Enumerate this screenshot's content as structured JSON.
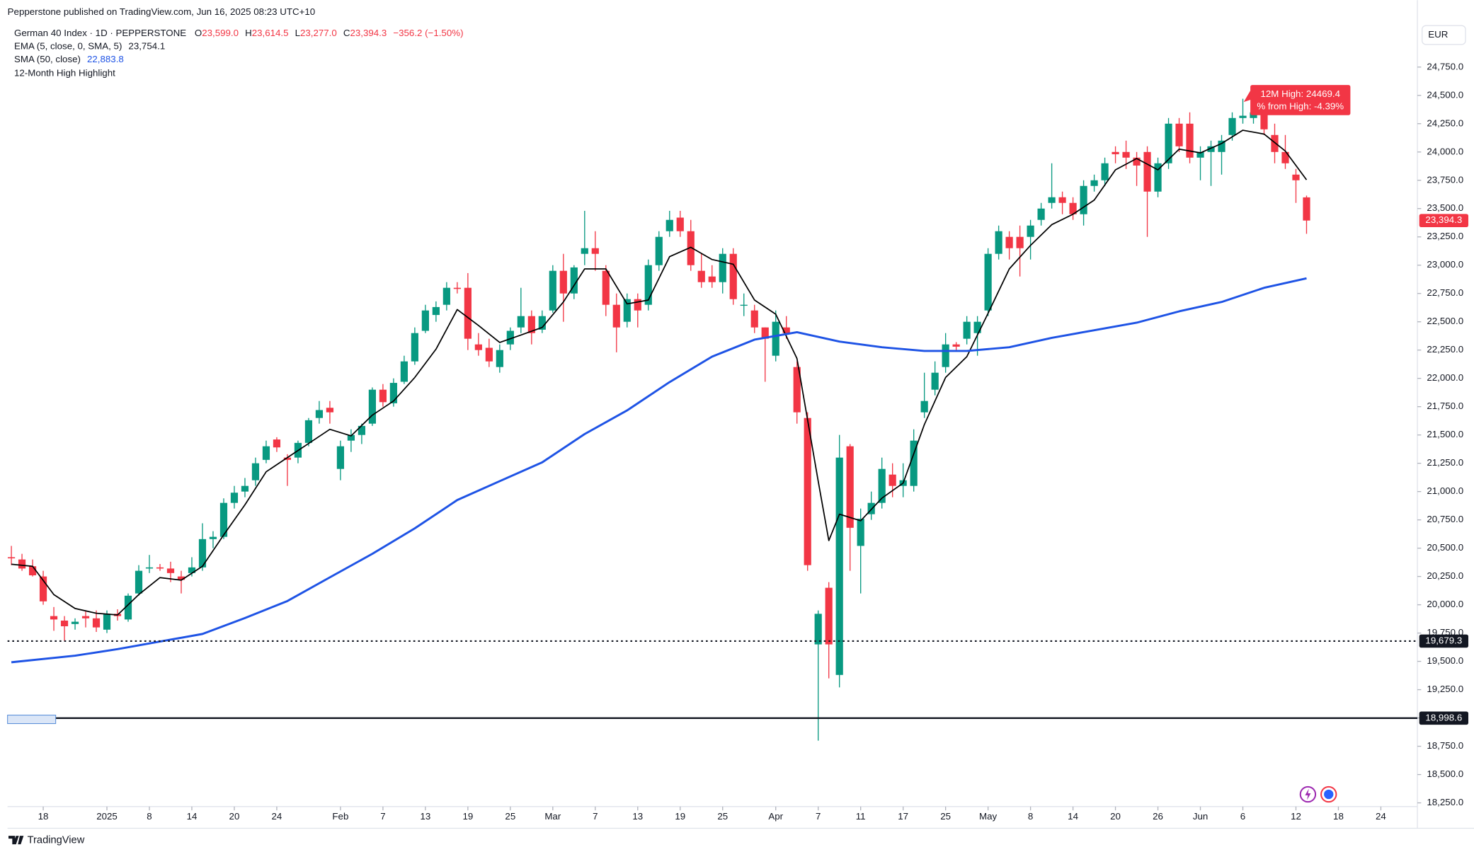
{
  "header": {
    "published": "Pepperstone published on TradingView.com, Jun 16, 2025 08:23 UTC+10",
    "symbol": "German 40 Index · 1D · PEPPERSTONE",
    "ohlc_legend": [
      {
        "label": "O",
        "value": "23,599.0"
      },
      {
        "label": "H",
        "value": "23,614.5"
      },
      {
        "label": "L",
        "value": "23,277.0"
      },
      {
        "label": "C",
        "value": "23,394.3"
      }
    ],
    "change": "−356.2 (−1.50%)",
    "indicators": [
      {
        "name": "EMA (5, close, 0, SMA, 5)",
        "value": "23,754.1"
      },
      {
        "name": "SMA (50, close)",
        "value": "22,883.8"
      },
      {
        "name": "12-Month High Highlight"
      }
    ],
    "currency": "EUR"
  },
  "footer": {
    "brand": "TradingView"
  },
  "chart_data": {
    "type": "candlestick",
    "up_color": "#089981",
    "down_color": "#f23645",
    "grid": false,
    "xlim": [
      -0.36,
      132.44
    ],
    "ylim": [
      18217,
      25133
    ],
    "yticks": [
      {
        "value": 24750,
        "label": "24,750.0"
      },
      {
        "value": 24500,
        "label": "24,500.0"
      },
      {
        "value": 24250,
        "label": "24,250.0"
      },
      {
        "value": 24000,
        "label": "24,000.0"
      },
      {
        "value": 23750,
        "label": "23,750.0"
      },
      {
        "value": 23500,
        "label": "23,500.0"
      },
      {
        "value": 23250,
        "label": "23,250.0"
      },
      {
        "value": 23000,
        "label": "23,000.0"
      },
      {
        "value": 22750,
        "label": "22,750.0"
      },
      {
        "value": 22500,
        "label": "22,500.0"
      },
      {
        "value": 22250,
        "label": "22,250.0"
      },
      {
        "value": 22000,
        "label": "22,000.0"
      },
      {
        "value": 21750,
        "label": "21,750.0"
      },
      {
        "value": 21500,
        "label": "21,500.0"
      },
      {
        "value": 21250,
        "label": "21,250.0"
      },
      {
        "value": 21000,
        "label": "21,000.0"
      },
      {
        "value": 20750,
        "label": "20,750.0"
      },
      {
        "value": 20500,
        "label": "20,500.0"
      },
      {
        "value": 20250,
        "label": "20,250.0"
      },
      {
        "value": 20000,
        "label": "20,000.0"
      },
      {
        "value": 19750,
        "label": "19,750.0"
      },
      {
        "value": 19500,
        "label": "19,500.0"
      },
      {
        "value": 19250,
        "label": "19,250.0"
      },
      {
        "value": 19000,
        "label": "19,000.0"
      },
      {
        "value": 18750,
        "label": "18,750.0"
      },
      {
        "value": 18500,
        "label": "18,500.0"
      },
      {
        "value": 18250,
        "label": "18,250.0"
      }
    ],
    "xticks": [
      {
        "value": 3,
        "label": "18"
      },
      {
        "value": 9,
        "label": "2025"
      },
      {
        "value": 13,
        "label": "8"
      },
      {
        "value": 17,
        "label": "14"
      },
      {
        "value": 21,
        "label": "20"
      },
      {
        "value": 25,
        "label": "24"
      },
      {
        "value": 31,
        "label": "Feb"
      },
      {
        "value": 35,
        "label": "7"
      },
      {
        "value": 39,
        "label": "13"
      },
      {
        "value": 43,
        "label": "19"
      },
      {
        "value": 47,
        "label": "25"
      },
      {
        "value": 51,
        "label": "Mar"
      },
      {
        "value": 55,
        "label": "7"
      },
      {
        "value": 59,
        "label": "13"
      },
      {
        "value": 63,
        "label": "19"
      },
      {
        "value": 67,
        "label": "25"
      },
      {
        "value": 72,
        "label": "Apr"
      },
      {
        "value": 76,
        "label": "7"
      },
      {
        "value": 80,
        "label": "11"
      },
      {
        "value": 84,
        "label": "17"
      },
      {
        "value": 88,
        "label": "25"
      },
      {
        "value": 92,
        "label": "May"
      },
      {
        "value": 96,
        "label": "8"
      },
      {
        "value": 100,
        "label": "14"
      },
      {
        "value": 104,
        "label": "20"
      },
      {
        "value": 108,
        "label": "26"
      },
      {
        "value": 112,
        "label": "Jun"
      },
      {
        "value": 116,
        "label": "6"
      },
      {
        "value": 121,
        "label": "12"
      },
      {
        "value": 125,
        "label": "18"
      },
      {
        "value": 129,
        "label": "24"
      }
    ],
    "open": [
      20420,
      20400,
      20340,
      20250,
      19900,
      19860,
      19830,
      19900,
      19880,
      19780,
      19920,
      19870,
      20100,
      20320,
      20330,
      20320,
      20250,
      20280,
      20330,
      20580,
      20600,
      20900,
      21000,
      21100,
      21280,
      21460,
      21300,
      21300,
      21430,
      21650,
      21740,
      21200,
      21450,
      21500,
      21600,
      21900,
      21780,
      21970,
      22150,
      22420,
      22560,
      22650,
      22800,
      22800,
      22300,
      22270,
      22100,
      22300,
      22450,
      22550,
      22430,
      22600,
      22950,
      22750,
      23100,
      23150,
      22950,
      22650,
      22500,
      22700,
      22650,
      23000,
      23300,
      23420,
      23300,
      22950,
      22900,
      22850,
      23100,
      22650,
      22600,
      22450,
      22200,
      22450,
      22100,
      21650,
      19650,
      20150,
      19380,
      21400,
      20520,
      20800,
      20900,
      21150,
      21050,
      21050,
      21700,
      21900,
      22100,
      22300,
      22350,
      22400,
      22600,
      23100,
      23250,
      23250,
      23250,
      23400,
      23550,
      23600,
      23550,
      23450,
      23700,
      23750,
      24000,
      24000,
      23950,
      24000,
      23650,
      23900,
      24250,
      24250,
      23950,
      24000,
      24000,
      24150,
      24300,
      24300,
      24350,
      24150,
      24000,
      23800,
      23599
    ],
    "high": [
      20520,
      20450,
      20400,
      20300,
      19980,
      19900,
      19880,
      19950,
      19950,
      19950,
      19960,
      20100,
      20350,
      20440,
      20360,
      20380,
      20300,
      20420,
      20720,
      20650,
      20940,
      21050,
      21120,
      21300,
      21450,
      21480,
      21330,
      21450,
      21650,
      21800,
      21800,
      21450,
      21550,
      21600,
      21920,
      21950,
      22000,
      22200,
      22450,
      22650,
      22680,
      22850,
      22850,
      22930,
      22400,
      22350,
      22300,
      22450,
      22800,
      22600,
      22600,
      23000,
      23100,
      23000,
      23480,
      23300,
      23000,
      22750,
      22750,
      22750,
      23050,
      23300,
      23480,
      23480,
      23400,
      23100,
      23000,
      23150,
      23150,
      22750,
      22650,
      22450,
      22600,
      22550,
      22150,
      21700,
      19950,
      20200,
      21500,
      21420,
      20850,
      21000,
      21300,
      21250,
      21250,
      21550,
      22050,
      22150,
      22400,
      22320,
      22550,
      22550,
      23150,
      23350,
      23300,
      23350,
      23400,
      23550,
      23900,
      23650,
      23600,
      23750,
      23800,
      23950,
      24050,
      24100,
      24000,
      24050,
      23950,
      24300,
      24300,
      24350,
      24050,
      24100,
      24150,
      24350,
      24470,
      24420,
      24400,
      24250,
      24150,
      23850,
      23614.5
    ],
    "low": [
      20350,
      20300,
      20250,
      20000,
      19770,
      19680,
      19780,
      19800,
      19760,
      19750,
      19860,
      19850,
      20080,
      20280,
      20300,
      20200,
      20100,
      20250,
      20300,
      20500,
      20580,
      20850,
      20950,
      21050,
      21250,
      21350,
      21050,
      21250,
      21400,
      21600,
      21600,
      21100,
      21350,
      21420,
      21580,
      21750,
      21750,
      21950,
      22120,
      22400,
      22500,
      22600,
      22750,
      22250,
      22200,
      22100,
      22050,
      22250,
      22400,
      22300,
      22400,
      22580,
      22500,
      22700,
      23000,
      22950,
      22550,
      22230,
      22450,
      22450,
      22600,
      22950,
      23250,
      23250,
      22950,
      22800,
      22800,
      22750,
      22650,
      22550,
      22400,
      21970,
      22150,
      22350,
      21600,
      20300,
      18800,
      19350,
      19270,
      20300,
      20100,
      20750,
      20850,
      20950,
      20950,
      21000,
      21650,
      21850,
      22050,
      22250,
      22300,
      22200,
      22550,
      23050,
      23050,
      22900,
      23050,
      23350,
      23500,
      23450,
      23400,
      23350,
      23650,
      23700,
      23900,
      23850,
      23700,
      23250,
      23600,
      23850,
      24000,
      23900,
      23750,
      23700,
      23800,
      24100,
      24250,
      24250,
      24150,
      23900,
      23850,
      23550,
      23277
    ],
    "close": [
      20410,
      20320,
      20260,
      20030,
      19870,
      19810,
      19850,
      19880,
      19800,
      19920,
      19900,
      20080,
      20300,
      20330,
      20320,
      20280,
      20220,
      20330,
      20580,
      20600,
      20900,
      20990,
      21050,
      21250,
      21400,
      21390,
      21280,
      21430,
      21630,
      21720,
      21700,
      21400,
      21500,
      21580,
      21900,
      21790,
      21960,
      22150,
      22400,
      22600,
      22630,
      22800,
      22790,
      22350,
      22250,
      22150,
      22250,
      22420,
      22550,
      22400,
      22550,
      22950,
      22750,
      22980,
      23150,
      23100,
      22650,
      22450,
      22700,
      22600,
      23000,
      23250,
      23400,
      23300,
      23000,
      22850,
      22850,
      23100,
      22700,
      22650,
      22450,
      22350,
      22500,
      22400,
      21700,
      20350,
      19920,
      19650,
      21300,
      20680,
      20760,
      20900,
      21200,
      21050,
      21100,
      21450,
      21800,
      22050,
      22300,
      22280,
      22500,
      22500,
      23100,
      23300,
      23150,
      23150,
      23350,
      23500,
      23600,
      23550,
      23450,
      23700,
      23750,
      23900,
      23980,
      23950,
      23880,
      23650,
      23900,
      24250,
      24050,
      23950,
      24000,
      24050,
      24100,
      24300,
      24320,
      24350,
      24200,
      24000,
      23900,
      23750,
      23394.3
    ],
    "last_price_label": "23,394.3",
    "lines": [
      {
        "color": "#000000",
        "x": [
          0,
          2,
          4,
          6,
          8,
          10,
          12,
          14,
          16,
          18,
          20,
          22,
          24,
          26,
          28,
          30,
          32,
          34,
          36,
          38,
          40,
          42,
          44,
          46,
          48,
          50,
          52,
          54,
          56,
          58,
          60,
          62,
          64,
          66,
          68,
          70,
          72,
          74,
          76,
          77,
          78,
          80,
          82,
          84,
          86,
          88,
          90,
          92,
          94,
          96,
          98,
          100,
          102,
          104,
          106,
          108,
          110,
          112,
          114,
          116,
          118,
          120,
          122
        ],
        "values": [
          20358,
          20340,
          20090,
          19967,
          19925,
          19910,
          20090,
          20240,
          20217,
          20340,
          20617,
          20883,
          21175,
          21300,
          21425,
          21550,
          21492,
          21675,
          21800,
          22008,
          22258,
          22608,
          22467,
          22317,
          22383,
          22450,
          22675,
          22967,
          22967,
          22658,
          22692,
          23075,
          23158,
          23050,
          23008,
          22692,
          22567,
          22175,
          21092,
          20567,
          20800,
          20742,
          20942,
          21075,
          21592,
          22008,
          22192,
          22575,
          22967,
          23175,
          23358,
          23450,
          23575,
          23842,
          23942,
          23842,
          24025,
          23992,
          24075,
          24192,
          24158,
          24008,
          23754.1
        ]
      },
      {
        "color": "#1e53e5",
        "x": [
          0,
          6,
          10,
          14,
          18,
          22,
          26,
          30,
          34,
          38,
          42,
          46,
          50,
          54,
          58,
          62,
          66,
          70,
          74,
          78,
          82,
          86,
          90,
          94,
          98,
          102,
          106,
          110,
          114,
          118,
          122
        ],
        "values": [
          19492,
          19550,
          19608,
          19675,
          19742,
          19883,
          20033,
          20242,
          20450,
          20675,
          20925,
          21092,
          21258,
          21508,
          21717,
          21967,
          22192,
          22342,
          22408,
          22325,
          22275,
          22242,
          22242,
          22275,
          22358,
          22425,
          22492,
          22592,
          22675,
          22800,
          22883.8
        ]
      }
    ],
    "levels": [
      {
        "value": 19679.3,
        "label": "19,679.3",
        "style": "dotted"
      },
      {
        "value": 18998.6,
        "label": "18,998.6",
        "style": "solid"
      }
    ],
    "annotation": {
      "lines": [
        "12M High: 24469.4",
        "% from High: -4.39%"
      ],
      "color": "#f23645"
    }
  }
}
